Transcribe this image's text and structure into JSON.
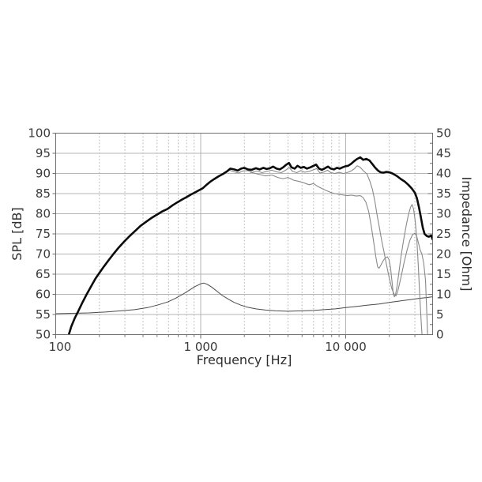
{
  "chart_data": {
    "type": "line",
    "title": "",
    "x_axis": {
      "label": "Frequency [Hz]",
      "scale": "log",
      "min": 100,
      "max": 40000,
      "tick_values": [
        100,
        1000,
        10000
      ],
      "tick_labels": [
        "100",
        "1 000",
        "10 000"
      ]
    },
    "y_left": {
      "label": "SPL [dB]",
      "min": 50,
      "max": 100,
      "tick_step": 5,
      "tick_labels": [
        "100",
        "95",
        "90",
        "85",
        "80",
        "75",
        "70",
        "65",
        "60",
        "55",
        "50"
      ]
    },
    "y_right": {
      "label": "Impedance [Ohm]",
      "min": 0,
      "max": 50,
      "tick_step": 5,
      "minor_tick_step": 2.5,
      "tick_labels": [
        "50",
        "45",
        "40",
        "35",
        "30",
        "25",
        "20",
        "15",
        "10",
        "5",
        "0"
      ]
    },
    "grid": {
      "horizontal_major": true,
      "vertical_decades_solid": true,
      "vertical_minor_dotted": true,
      "legend": "none"
    },
    "colors": {
      "on_axis": "#0b0b0b",
      "off_axis": "#898989",
      "impedance": "#4a4a4a",
      "grid": "#b5b5b5",
      "grid_dotted": "#b0b0b0",
      "frame": "#6e6e6e"
    },
    "series": [
      {
        "name": "spl-on-axis",
        "axis": "spl",
        "color": "#0b0b0b",
        "width": 2.6,
        "points": [
          [
            118,
            47
          ],
          [
            122,
            49.5
          ],
          [
            128,
            52
          ],
          [
            135,
            54
          ],
          [
            143,
            55.8
          ],
          [
            152,
            57.8
          ],
          [
            163,
            59.9
          ],
          [
            175,
            61.9
          ],
          [
            188,
            63.9
          ],
          [
            200,
            65.3
          ],
          [
            215,
            66.9
          ],
          [
            232,
            68.5
          ],
          [
            250,
            70
          ],
          [
            270,
            71.5
          ],
          [
            295,
            73
          ],
          [
            320,
            74.3
          ],
          [
            350,
            75.6
          ],
          [
            385,
            77
          ],
          [
            420,
            78
          ],
          [
            460,
            79
          ],
          [
            500,
            79.8
          ],
          [
            545,
            80.6
          ],
          [
            590,
            81.2
          ],
          [
            640,
            82.1
          ],
          [
            695,
            82.9
          ],
          [
            750,
            83.6
          ],
          [
            805,
            84.2
          ],
          [
            860,
            84.8
          ],
          [
            915,
            85.3
          ],
          [
            970,
            85.8
          ],
          [
            1030,
            86.3
          ],
          [
            1090,
            87.1
          ],
          [
            1160,
            87.9
          ],
          [
            1240,
            88.6
          ],
          [
            1330,
            89.3
          ],
          [
            1430,
            89.9
          ],
          [
            1530,
            90.6
          ],
          [
            1600,
            91.2
          ],
          [
            1700,
            91
          ],
          [
            1800,
            90.7
          ],
          [
            1900,
            91.2
          ],
          [
            2000,
            91.4
          ],
          [
            2120,
            91
          ],
          [
            2250,
            90.9
          ],
          [
            2400,
            91.3
          ],
          [
            2550,
            91
          ],
          [
            2700,
            91.4
          ],
          [
            2850,
            91.1
          ],
          [
            3000,
            91.3
          ],
          [
            3160,
            91.7
          ],
          [
            3330,
            91.2
          ],
          [
            3510,
            91
          ],
          [
            3700,
            91.5
          ],
          [
            3900,
            92.2
          ],
          [
            4060,
            92.6
          ],
          [
            4230,
            91.5
          ],
          [
            4450,
            91.2
          ],
          [
            4650,
            91.9
          ],
          [
            4900,
            91.4
          ],
          [
            5150,
            91.6
          ],
          [
            5400,
            91.2
          ],
          [
            5700,
            91.5
          ],
          [
            6000,
            91.9
          ],
          [
            6250,
            92.2
          ],
          [
            6550,
            91.2
          ],
          [
            6850,
            90.9
          ],
          [
            7200,
            91.3
          ],
          [
            7550,
            91.7
          ],
          [
            7900,
            91.2
          ],
          [
            8300,
            91
          ],
          [
            8700,
            91.4
          ],
          [
            9100,
            91.2
          ],
          [
            9500,
            91.5
          ],
          [
            10000,
            91.8
          ],
          [
            10400,
            91.9
          ],
          [
            10900,
            92.4
          ],
          [
            11400,
            93
          ],
          [
            12000,
            93.6
          ],
          [
            12600,
            94
          ],
          [
            13200,
            93.4
          ],
          [
            13900,
            93.6
          ],
          [
            14600,
            93.2
          ],
          [
            15300,
            92.3
          ],
          [
            16000,
            91.4
          ],
          [
            16700,
            90.7
          ],
          [
            17400,
            90.3
          ],
          [
            18200,
            90.2
          ],
          [
            19100,
            90.4
          ],
          [
            20000,
            90.3
          ],
          [
            21000,
            90
          ],
          [
            22500,
            89.4
          ],
          [
            24000,
            88.6
          ],
          [
            25500,
            88
          ],
          [
            27000,
            87.2
          ],
          [
            28500,
            86.3
          ],
          [
            30000,
            85.2
          ],
          [
            31000,
            83.8
          ],
          [
            32000,
            81.6
          ],
          [
            33000,
            79.2
          ],
          [
            34000,
            76.6
          ],
          [
            35000,
            75
          ],
          [
            36200,
            74.5
          ],
          [
            37500,
            74.3
          ],
          [
            38800,
            74.6
          ],
          [
            39800,
            73.6
          ]
        ]
      },
      {
        "name": "spl-30-deg-off-axis",
        "axis": "spl",
        "color": "#898989",
        "width": 1.1,
        "points": [
          [
            500,
            79.6
          ],
          [
            560,
            80.7
          ],
          [
            620,
            81.7
          ],
          [
            690,
            82.7
          ],
          [
            760,
            83.6
          ],
          [
            830,
            84.4
          ],
          [
            900,
            85.2
          ],
          [
            980,
            85.9
          ],
          [
            1060,
            86.8
          ],
          [
            1150,
            87.8
          ],
          [
            1250,
            88.7
          ],
          [
            1360,
            89.5
          ],
          [
            1470,
            90.2
          ],
          [
            1580,
            90.8
          ],
          [
            1700,
            90.4
          ],
          [
            1820,
            90.1
          ],
          [
            1950,
            90.6
          ],
          [
            2100,
            90.7
          ],
          [
            2270,
            90.3
          ],
          [
            2450,
            90.6
          ],
          [
            2650,
            90.2
          ],
          [
            2860,
            90.5
          ],
          [
            3090,
            90.8
          ],
          [
            3340,
            90.4
          ],
          [
            3600,
            90.2
          ],
          [
            3890,
            90.9
          ],
          [
            4060,
            91.5
          ],
          [
            4300,
            90.5
          ],
          [
            4600,
            90.2
          ],
          [
            4900,
            90.7
          ],
          [
            5200,
            90.3
          ],
          [
            5600,
            90.5
          ],
          [
            6000,
            90.9
          ],
          [
            6300,
            91.2
          ],
          [
            6650,
            90.1
          ],
          [
            7100,
            90.4
          ],
          [
            7500,
            90.8
          ],
          [
            7900,
            90.2
          ],
          [
            8400,
            90
          ],
          [
            9000,
            90.3
          ],
          [
            9600,
            90
          ],
          [
            10200,
            90.2
          ],
          [
            10900,
            90.6
          ],
          [
            11500,
            91.2
          ],
          [
            12000,
            91.9
          ],
          [
            12600,
            91.5
          ],
          [
            13200,
            90.7
          ],
          [
            14000,
            89.9
          ],
          [
            14700,
            88
          ],
          [
            15300,
            86
          ],
          [
            15900,
            83
          ],
          [
            16500,
            79.5
          ],
          [
            17100,
            76.4
          ],
          [
            17700,
            73.4
          ],
          [
            18400,
            70.4
          ],
          [
            19200,
            67
          ],
          [
            20000,
            64
          ],
          [
            20800,
            61.4
          ],
          [
            21600,
            60
          ],
          [
            22200,
            59.6
          ],
          [
            22800,
            60.6
          ],
          [
            23500,
            62.6
          ],
          [
            24300,
            65
          ],
          [
            25300,
            68
          ],
          [
            26500,
            71
          ],
          [
            27700,
            73.4
          ],
          [
            28900,
            74.8
          ],
          [
            30000,
            75.2
          ],
          [
            30900,
            74.4
          ],
          [
            31700,
            72.9
          ],
          [
            32600,
            71
          ],
          [
            33500,
            70.1
          ],
          [
            34500,
            67.8
          ],
          [
            35500,
            63.5
          ],
          [
            36300,
            55
          ],
          [
            36900,
            48
          ]
        ]
      },
      {
        "name": "spl-60-deg-off-axis",
        "axis": "spl",
        "color": "#898989",
        "width": 1.1,
        "points": [
          [
            2200,
            90.3
          ],
          [
            2500,
            89.8
          ],
          [
            2800,
            89.4
          ],
          [
            3100,
            89.6
          ],
          [
            3400,
            89
          ],
          [
            3700,
            88.7
          ],
          [
            4000,
            89
          ],
          [
            4400,
            88.3
          ],
          [
            4800,
            88
          ],
          [
            5200,
            87.6
          ],
          [
            5600,
            87.2
          ],
          [
            6000,
            87.5
          ],
          [
            6400,
            86.8
          ],
          [
            6900,
            86.2
          ],
          [
            7400,
            85.7
          ],
          [
            8000,
            85.2
          ],
          [
            8700,
            84.9
          ],
          [
            9400,
            84.7
          ],
          [
            10200,
            84.5
          ],
          [
            11000,
            84.6
          ],
          [
            11800,
            84.4
          ],
          [
            12600,
            84.5
          ],
          [
            13200,
            84
          ],
          [
            13800,
            82.8
          ],
          [
            14400,
            80.5
          ],
          [
            15000,
            77
          ],
          [
            15600,
            73
          ],
          [
            16100,
            69.5
          ],
          [
            16600,
            66.8
          ],
          [
            17000,
            66.5
          ],
          [
            17500,
            67.3
          ],
          [
            18100,
            68.3
          ],
          [
            18800,
            69.1
          ],
          [
            19400,
            69.3
          ],
          [
            19900,
            68.6
          ],
          [
            20400,
            66.5
          ],
          [
            20900,
            63
          ],
          [
            21300,
            60
          ],
          [
            21700,
            59.4
          ],
          [
            22100,
            60.1
          ],
          [
            22600,
            62
          ],
          [
            23300,
            65.5
          ],
          [
            24100,
            69.5
          ],
          [
            25100,
            73.5
          ],
          [
            26100,
            77
          ],
          [
            27100,
            79.8
          ],
          [
            28000,
            81.6
          ],
          [
            28700,
            82.3
          ],
          [
            29400,
            81.2
          ],
          [
            30100,
            78.5
          ],
          [
            30900,
            74
          ],
          [
            31700,
            67
          ],
          [
            32500,
            59
          ],
          [
            33300,
            52
          ],
          [
            33900,
            48
          ]
        ]
      },
      {
        "name": "impedance",
        "axis": "ohm",
        "color": "#4a4a4a",
        "width": 1,
        "points": [
          [
            100,
            5.2
          ],
          [
            130,
            5.3
          ],
          [
            170,
            5.4
          ],
          [
            220,
            5.6
          ],
          [
            280,
            5.9
          ],
          [
            350,
            6.2
          ],
          [
            430,
            6.7
          ],
          [
            510,
            7.4
          ],
          [
            590,
            8.1
          ],
          [
            670,
            9
          ],
          [
            750,
            10
          ],
          [
            830,
            11
          ],
          [
            910,
            11.9
          ],
          [
            1000,
            12.6
          ],
          [
            1050,
            12.8
          ],
          [
            1110,
            12.5
          ],
          [
            1190,
            11.8
          ],
          [
            1290,
            10.8
          ],
          [
            1410,
            9.7
          ],
          [
            1550,
            8.8
          ],
          [
            1700,
            8
          ],
          [
            1900,
            7.3
          ],
          [
            2100,
            6.8
          ],
          [
            2400,
            6.4
          ],
          [
            2800,
            6.1
          ],
          [
            3300,
            5.9
          ],
          [
            4000,
            5.8
          ],
          [
            5000,
            5.9
          ],
          [
            6000,
            6
          ],
          [
            7100,
            6.2
          ],
          [
            8500,
            6.4
          ],
          [
            10000,
            6.7
          ],
          [
            12000,
            7
          ],
          [
            14000,
            7.3
          ],
          [
            17000,
            7.6
          ],
          [
            20000,
            8
          ],
          [
            24000,
            8.4
          ],
          [
            28000,
            8.7
          ],
          [
            32000,
            9
          ],
          [
            36000,
            9.2
          ],
          [
            39800,
            9.4
          ]
        ]
      }
    ]
  }
}
